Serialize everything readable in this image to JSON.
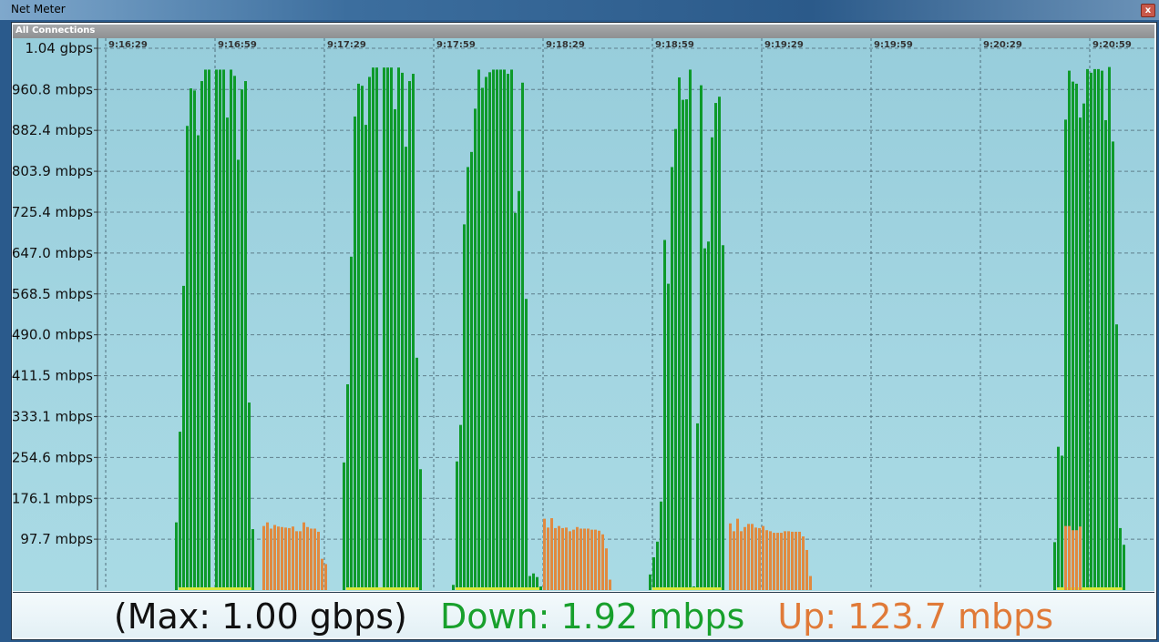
{
  "window": {
    "title": "Net Meter",
    "close_label": "x"
  },
  "panel": {
    "title": "All Connections"
  },
  "status": {
    "max": "(Max: 1.00 gbps)",
    "down": "Down: 1.92 mbps",
    "up": "Up: 123.7 mbps"
  },
  "colors": {
    "down": "#0e9a2a",
    "up": "#e08a40",
    "overlap": "#d8e83a",
    "max_text": "#111111",
    "background": "#a0d4e0"
  },
  "chart_data": {
    "type": "bar",
    "unit": "mbps",
    "ylim": [
      0,
      1040
    ],
    "y_ticks": [
      {
        "value": 1040,
        "label": "1.04 gbps"
      },
      {
        "value": 960.8,
        "label": "960.8 mbps"
      },
      {
        "value": 882.4,
        "label": "882.4 mbps"
      },
      {
        "value": 803.9,
        "label": "803.9 mbps"
      },
      {
        "value": 725.4,
        "label": "725.4 mbps"
      },
      {
        "value": 647.0,
        "label": "647.0 mbps"
      },
      {
        "value": 568.5,
        "label": "568.5 mbps"
      },
      {
        "value": 490.0,
        "label": "490.0 mbps"
      },
      {
        "value": 411.5,
        "label": "411.5 mbps"
      },
      {
        "value": 333.1,
        "label": "333.1 mbps"
      },
      {
        "value": 254.6,
        "label": "254.6 mbps"
      },
      {
        "value": 176.1,
        "label": "176.1 mbps"
      },
      {
        "value": 97.7,
        "label": "97.7 mbps"
      }
    ],
    "x_ticks": [
      "9:16:29",
      "9:16:59",
      "9:17:29",
      "9:17:59",
      "9:18:29",
      "9:18:59",
      "9:19:29",
      "9:19:59",
      "9:20:29",
      "9:20:59"
    ],
    "xlim": [
      "9:16:27",
      "9:21:17"
    ],
    "sample_interval_s": 1,
    "grid": true,
    "series": [
      {
        "name": "Down",
        "color": "#0e9a2a",
        "segments": [
          {
            "start": "9:16:48",
            "values": [
              130,
              304,
              584,
              891,
              963,
              959,
              873,
              977,
              999,
              999,
              0,
              999,
              999,
              999,
              907,
              999,
              987,
              826,
              961,
              977,
              360,
              117
            ]
          },
          {
            "start": "9:17:34",
            "values": [
              245,
              395,
              640,
              909,
              972,
              968,
              893,
              985,
              1003,
              1003,
              5,
              1003,
              1003,
              1003,
              923,
              1003,
              993,
              851,
              977,
              991,
              446,
              232
            ]
          },
          {
            "start": "9:18:04",
            "values": [
              10,
              247,
              317,
              702,
              812,
              841,
              924,
              999,
              964,
              985,
              994,
              999,
              999,
              999,
              999,
              991,
              999,
              724,
              766,
              974,
              559,
              27,
              32,
              25,
              7
            ]
          },
          {
            "start": "9:18:58",
            "values": [
              30,
              63,
              93,
              170,
              672,
              588,
              812,
              885,
              984,
              941,
              942,
              999,
              7,
              320,
              969,
              656,
              669,
              869,
              935,
              947,
              662
            ]
          },
          {
            "start": "9:20:49",
            "values": [
              92,
              275,
              258,
              903,
              997,
              976,
              972,
              907,
              934,
              1000,
              993,
              1000,
              1000,
              997,
              902,
              1004,
              861,
              510,
              119,
              87
            ]
          }
        ]
      },
      {
        "name": "Up",
        "color": "#e08a40",
        "segments": [
          {
            "start": "9:17:12",
            "values": [
              123,
              130,
              118,
              125,
              122,
              121,
              120,
              119,
              122,
              113,
              113,
              130,
              121,
              118,
              118,
              112,
              60,
              50
            ]
          },
          {
            "start": "9:18:29",
            "values": [
              137,
              120,
              138,
              119,
              123,
              119,
              120,
              113,
              116,
              121,
              118,
              118,
              118,
              116,
              116,
              114,
              107,
              80,
              20
            ]
          },
          {
            "start": "9:19:20",
            "values": [
              128,
              113,
              137,
              113,
              121,
              127,
              127,
              120,
              119,
              123,
              115,
              113,
              110,
              110,
              110,
              113,
              113,
              112,
              112,
              112,
              103,
              77,
              27
            ]
          },
          {
            "start": "9:20:52",
            "values": [
              123,
              123,
              115,
              115,
              122
            ]
          }
        ]
      }
    ]
  }
}
